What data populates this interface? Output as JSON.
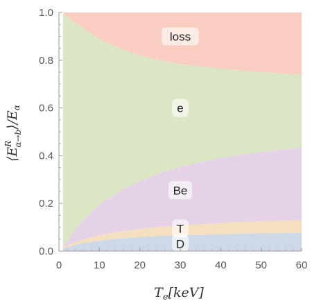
{
  "chart_data": {
    "type": "area",
    "stacked": true,
    "xlabel": "T_e[keV]",
    "ylabel": "⟨E^R_{α→b}⟩/E_α",
    "xlim": [
      0,
      60
    ],
    "ylim": [
      0,
      1.0
    ],
    "x_ticks": [
      "0",
      "10",
      "20",
      "30",
      "40",
      "50",
      "60"
    ],
    "y_ticks": [
      "0.0",
      "0.2",
      "0.4",
      "0.6",
      "0.8",
      "1.0"
    ],
    "grid": false,
    "x": [
      1,
      2,
      4,
      6,
      8,
      10,
      15,
      20,
      25,
      30,
      35,
      40,
      45,
      50,
      55,
      60
    ],
    "series": [
      {
        "name": "D",
        "color": "#cdd9e6",
        "values": [
          0.01,
          0.016,
          0.026,
          0.033,
          0.039,
          0.044,
          0.053,
          0.059,
          0.064,
          0.067,
          0.069,
          0.071,
          0.073,
          0.074,
          0.075,
          0.076
        ]
      },
      {
        "name": "T",
        "color": "#f4dfbf",
        "values": [
          0.004,
          0.007,
          0.012,
          0.016,
          0.019,
          0.022,
          0.029,
          0.034,
          0.038,
          0.041,
          0.044,
          0.047,
          0.049,
          0.051,
          0.053,
          0.055
        ]
      },
      {
        "name": "Be",
        "color": "#e6d2e6",
        "values": [
          0.0,
          0.018,
          0.05,
          0.08,
          0.106,
          0.13,
          0.17,
          0.2,
          0.225,
          0.245,
          0.26,
          0.272,
          0.282,
          0.29,
          0.297,
          0.303
        ]
      },
      {
        "name": "e",
        "color": "#dbe6c4",
        "values": [
          0.986,
          0.944,
          0.87,
          0.806,
          0.747,
          0.694,
          0.598,
          0.527,
          0.473,
          0.432,
          0.401,
          0.375,
          0.354,
          0.335,
          0.32,
          0.306
        ]
      },
      {
        "name": "loss",
        "color": "#f9cdc0",
        "values": [
          0.0,
          0.015,
          0.042,
          0.065,
          0.089,
          0.11,
          0.15,
          0.18,
          0.2,
          0.215,
          0.226,
          0.235,
          0.242,
          0.25,
          0.255,
          0.26
        ]
      }
    ],
    "region_labels": [
      {
        "text": "loss",
        "x": 30,
        "y": 0.9
      },
      {
        "text": "e",
        "x": 30,
        "y": 0.6
      },
      {
        "text": "Be",
        "x": 30,
        "y": 0.255
      },
      {
        "text": "T",
        "x": 30,
        "y": 0.095
      },
      {
        "text": "D",
        "x": 30,
        "y": 0.03
      }
    ]
  }
}
